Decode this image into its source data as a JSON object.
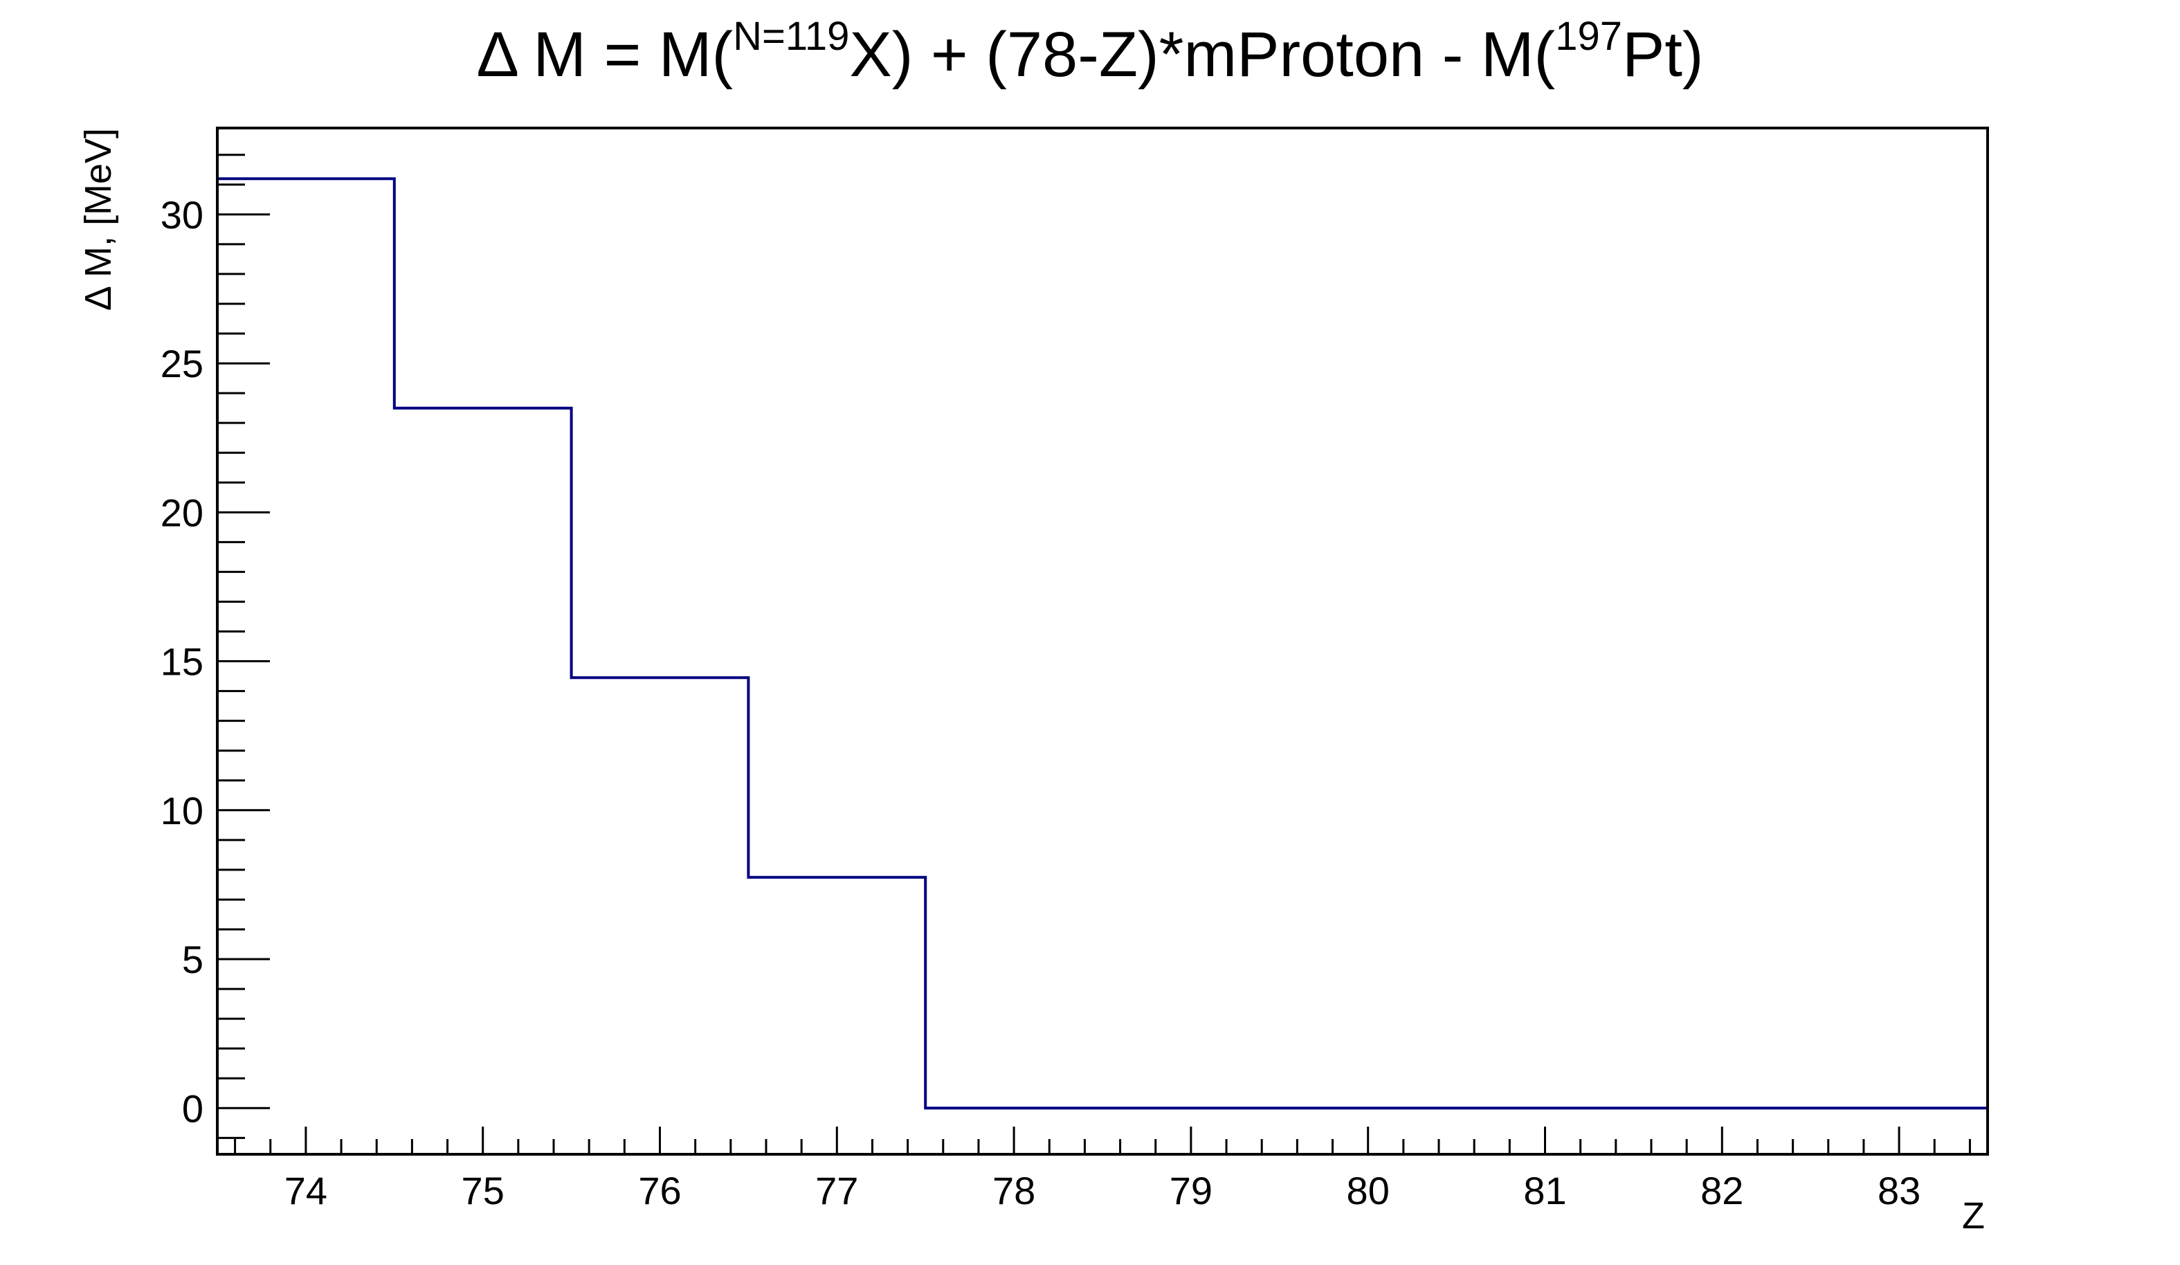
{
  "chart_data": {
    "type": "line",
    "style": "histogram-step",
    "title": {
      "prefix": "Δ M = M(",
      "sup1": "N=119",
      "middle": "X) + (78-Z)*mProton - M(",
      "sup2": "197",
      "suffix": "Pt)"
    },
    "xlabel": "Z",
    "ylabel": "Δ M, [MeV]",
    "xlim": [
      73.5,
      83.5
    ],
    "ylim": [
      -1.55,
      32.9
    ],
    "xticks": [
      74,
      75,
      76,
      77,
      78,
      79,
      80,
      81,
      82,
      83
    ],
    "xtick_labels": [
      "74",
      "75",
      "76",
      "77",
      "78",
      "79",
      "80",
      "81",
      "82",
      "83"
    ],
    "yticks": [
      0,
      5,
      10,
      15,
      20,
      25,
      30
    ],
    "ytick_labels": [
      "0",
      "5",
      "10",
      "15",
      "20",
      "25",
      "30"
    ],
    "grid": false,
    "series": [
      {
        "bin_edges": [
          73.5,
          74.5,
          75.5,
          76.5,
          77.5,
          78.5,
          79.5,
          80.5,
          81.5,
          82.5,
          83.5
        ],
        "values": [
          31.2,
          23.5,
          14.45,
          7.75,
          0,
          0,
          0,
          0,
          0,
          0
        ],
        "color": "#000080"
      }
    ]
  }
}
